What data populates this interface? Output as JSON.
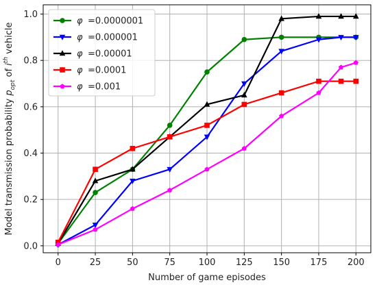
{
  "chart_data": {
    "type": "line",
    "xlabel": "Number of game episodes",
    "ylabel": {
      "pre": "Model transmission probability ",
      "p": "p",
      "sub": "opt",
      "mid": " of ",
      "i": "i",
      "sup": "th",
      "post": " vehicle"
    },
    "xlim": [
      -10,
      210
    ],
    "ylim": [
      -0.03,
      1.04
    ],
    "xticks": [
      0,
      25,
      50,
      75,
      100,
      125,
      150,
      175,
      200
    ],
    "yticks": [
      0.0,
      0.2,
      0.4,
      0.6,
      0.8,
      1.0
    ],
    "ytick_labels": [
      "0.0",
      "0.2",
      "0.4",
      "0.6",
      "0.8",
      "1.0"
    ],
    "grid": true,
    "legend_position": "top-left",
    "series": [
      {
        "name": "=0.0000001",
        "color": "#008000",
        "marker": "circle",
        "x": [
          0,
          25,
          50,
          75,
          100,
          125,
          150,
          175,
          200
        ],
        "y": [
          0.01,
          0.23,
          0.33,
          0.52,
          0.75,
          0.89,
          0.9,
          0.9,
          0.9
        ]
      },
      {
        "name": "=0.000001",
        "color": "#0000ff",
        "marker": "triangle-down",
        "x": [
          0,
          25,
          50,
          75,
          100,
          125,
          150,
          175,
          190,
          200
        ],
        "y": [
          0.005,
          0.09,
          0.28,
          0.33,
          0.47,
          0.7,
          0.84,
          0.89,
          0.9,
          0.9
        ]
      },
      {
        "name": "=0.00001",
        "color": "#000000",
        "marker": "triangle-up",
        "x": [
          0,
          25,
          50,
          75,
          100,
          125,
          150,
          175,
          190,
          200
        ],
        "y": [
          0.01,
          0.28,
          0.33,
          0.47,
          0.61,
          0.65,
          0.98,
          0.99,
          0.99,
          0.99
        ]
      },
      {
        "name": "=0.0001",
        "color": "#ff0000",
        "marker": "square",
        "x": [
          0,
          25,
          50,
          75,
          100,
          125,
          150,
          175,
          190,
          200
        ],
        "y": [
          0.015,
          0.33,
          0.42,
          0.47,
          0.52,
          0.61,
          0.66,
          0.71,
          0.71,
          0.71
        ]
      },
      {
        "name": "=0.001",
        "color": "#ff00ff",
        "marker": "pentagon",
        "x": [
          0,
          25,
          50,
          75,
          100,
          125,
          150,
          175,
          190,
          200
        ],
        "y": [
          0.005,
          0.07,
          0.16,
          0.24,
          0.33,
          0.42,
          0.56,
          0.66,
          0.77,
          0.79
        ]
      }
    ],
    "legend_symbol": "φ"
  }
}
